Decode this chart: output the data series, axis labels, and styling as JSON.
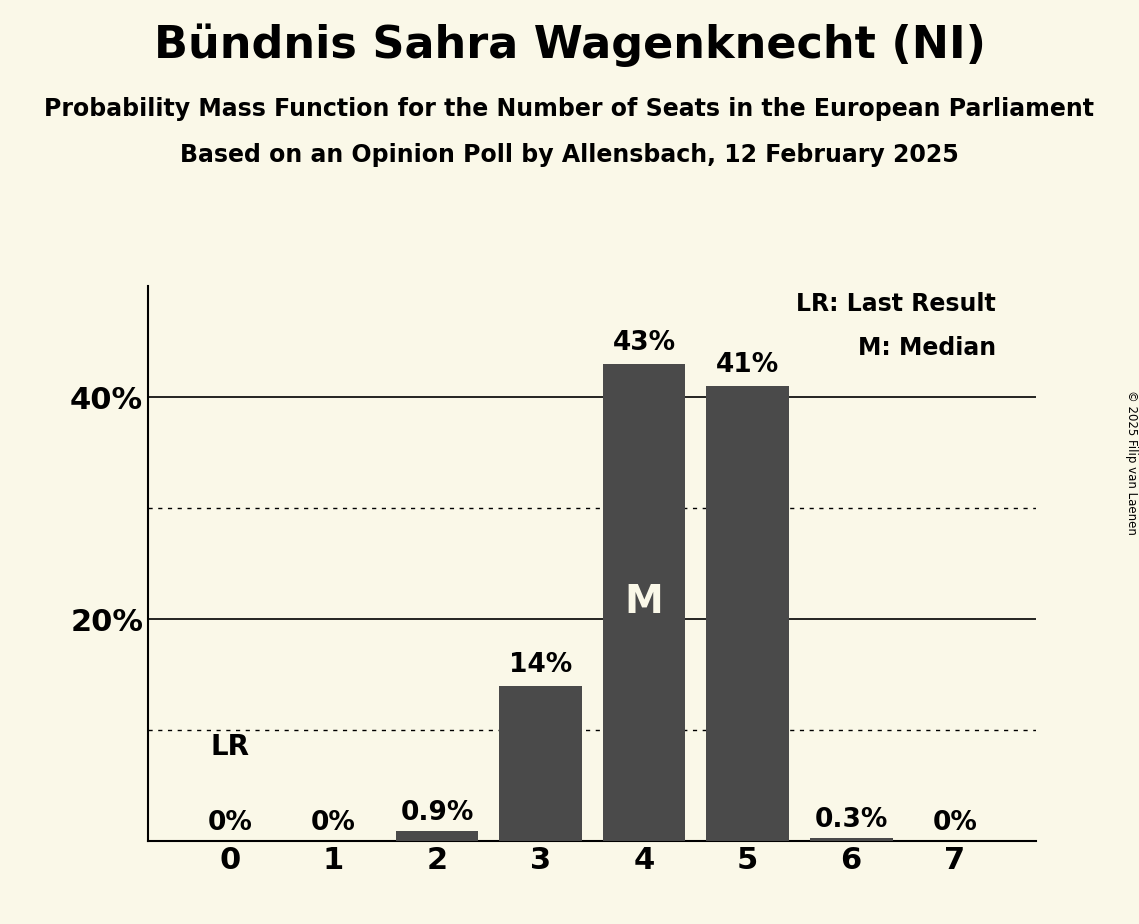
{
  "title": "Bündnis Sahra Wagenknecht (NI)",
  "subtitle1": "Probability Mass Function for the Number of Seats in the European Parliament",
  "subtitle2": "Based on an Opinion Poll by Allensbach, 12 February 2025",
  "copyright": "© 2025 Filip van Laenen",
  "categories": [
    0,
    1,
    2,
    3,
    4,
    5,
    6,
    7
  ],
  "values": [
    0.0,
    0.0,
    0.9,
    14.0,
    43.0,
    41.0,
    0.3,
    0.0
  ],
  "bar_color": "#4a4a4a",
  "background_color": "#faf8e8",
  "bar_label_fontsize": 19,
  "bar_labels": [
    "0%",
    "0%",
    "0.9%",
    "14%",
    "43%",
    "41%",
    "0.3%",
    "0%"
  ],
  "median_bar_idx": 4,
  "lr_bar_idx": 0,
  "legend_text1": "LR: Last Result",
  "legend_text2": "M: Median",
  "ysolid_lines": [
    20,
    40
  ],
  "ydotted_lines": [
    10,
    30
  ],
  "ylim": [
    0,
    50
  ],
  "title_fontsize": 32,
  "subtitle_fontsize": 17,
  "ytick_fontsize": 22,
  "xtick_fontsize": 22,
  "legend_fontsize": 17,
  "lr_label_fontsize": 20,
  "m_label_fontsize": 28
}
